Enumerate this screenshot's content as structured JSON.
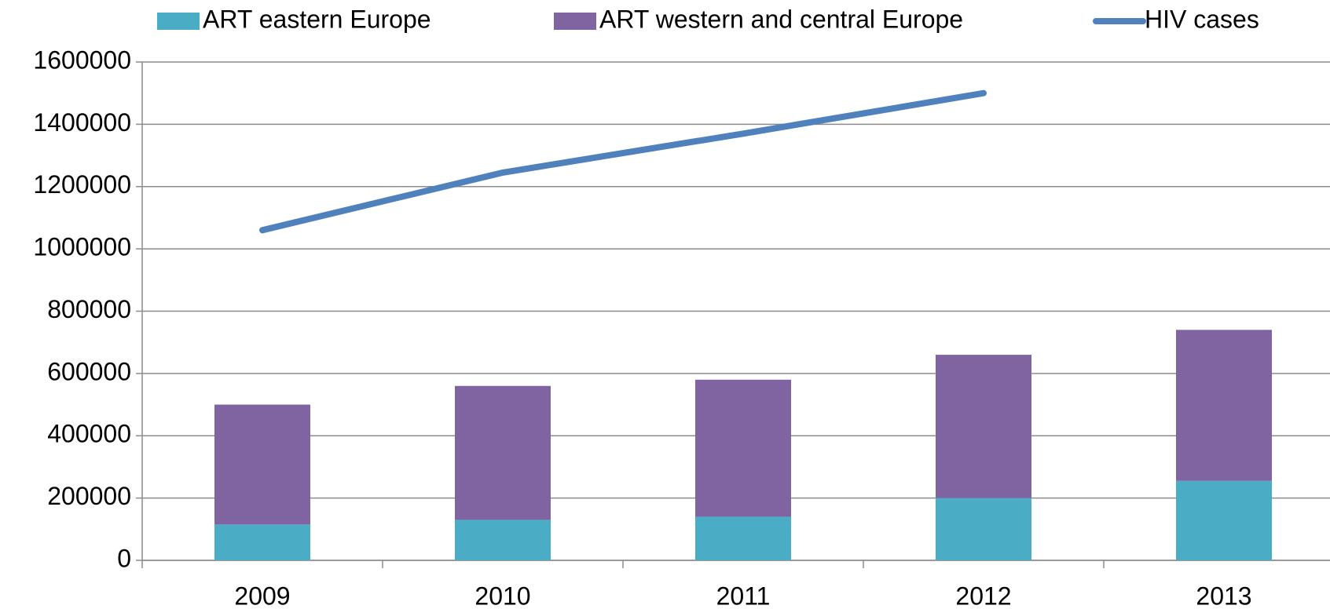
{
  "chart_data": {
    "type": "bar",
    "categories": [
      "2009",
      "2010",
      "2011",
      "2012",
      "2013"
    ],
    "series": [
      {
        "name": "ART eastern Europe",
        "color": "#4bacc6",
        "values": [
          115000,
          130000,
          140000,
          200000,
          255000
        ]
      },
      {
        "name": "ART western and central Europe",
        "color": "#8064a2",
        "values": [
          385000,
          430000,
          440000,
          460000,
          485000
        ]
      },
      {
        "name": "HIV cases",
        "type": "line",
        "color": "#4f81bd",
        "values": [
          1060000,
          1245000,
          1370000,
          1500000,
          null
        ]
      }
    ],
    "stacked": true,
    "ylim": [
      0,
      1600000
    ],
    "yticks": [
      0,
      200000,
      400000,
      600000,
      800000,
      1000000,
      1200000,
      1400000,
      1600000
    ],
    "grid": true,
    "legend": "top"
  }
}
